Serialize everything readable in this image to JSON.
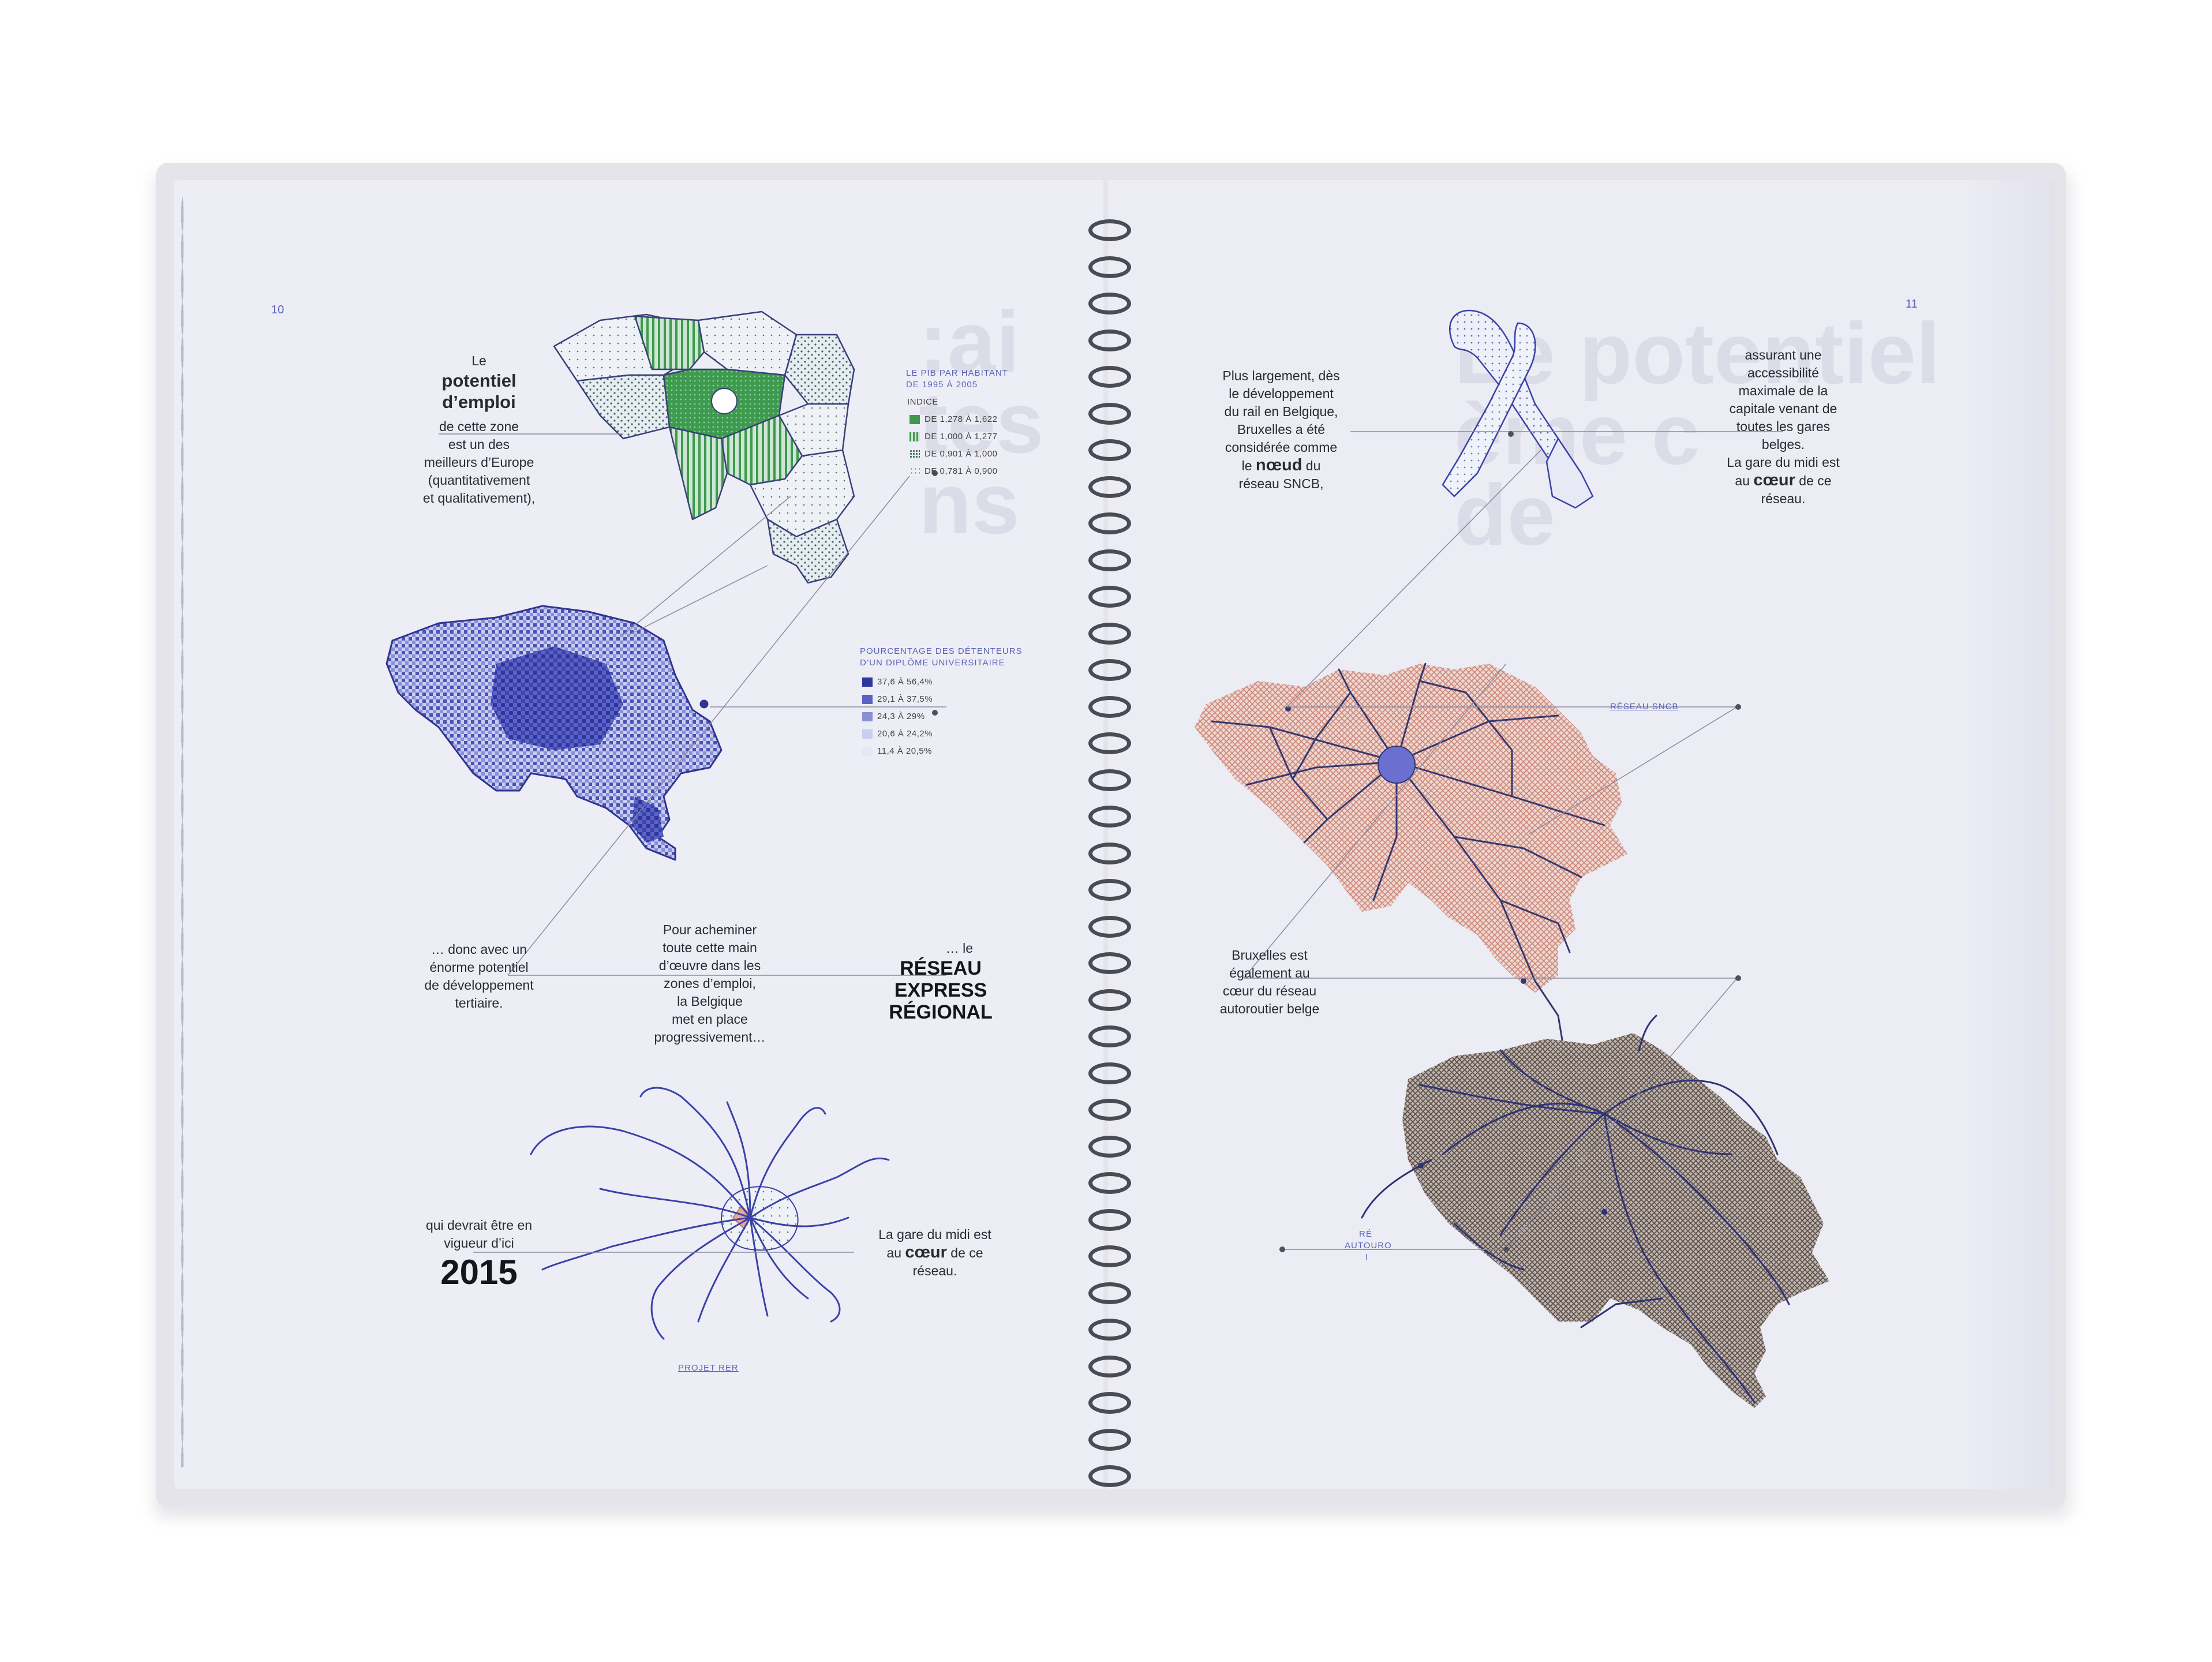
{
  "pages": {
    "left_number": "10",
    "right_number": "11"
  },
  "left": {
    "intro": {
      "line1": "Le",
      "line2": "potentiel",
      "line3": "d’emploi",
      "line4": "de cette zone",
      "line5": "est un des",
      "line6": "meilleurs d’Europe",
      "line7": "(quantitativement",
      "line8": "et qualitativement),"
    },
    "legend_pib": {
      "title1": "LE PIB PAR HABITANT",
      "title2": "DE 1995 À 2005",
      "sub": "INDICE",
      "items": [
        "DE 1,278 À 1,622",
        "DE 1,000 À 1,277",
        "DE 0,901 À 1,000",
        "DE 0,781 À 0,900"
      ]
    },
    "legend_diploma": {
      "title1": "POURCENTAGE DES DÉTENTEURS",
      "title2": "D’UN DIPLÔME UNIVERSITAIRE",
      "items": [
        "37,6 À 56,4%",
        "29,1 À 37,5%",
        "24,3 À 29%",
        "20,6 À 24,2%",
        "11,4 À 20,5%"
      ]
    },
    "donc": {
      "line1": "… donc avec un",
      "line2": "énorme potentiel",
      "line3": "de développement",
      "line4": "tertiaire."
    },
    "acheminer": {
      "line1": "Pour acheminer",
      "line2": "toute cette main",
      "line3": "d’œuvre dans les",
      "line4": "zones d’emploi,",
      "line5": "la Belgique",
      "line6": "met en place",
      "line7": "progressivement…"
    },
    "rer": {
      "line1": "… le",
      "line2": "RÉSEAU",
      "line3": "EXPRESS",
      "line4": "RÉGIONAL"
    },
    "vigueur": {
      "line1": "qui devrait être en",
      "line2": "vigueur d’ici",
      "year": "2015"
    },
    "midi": {
      "line1": "La gare du midi est",
      "line2_pre": "au",
      "line2_bold": "cœur",
      "line2_post": "de ce",
      "line3": "réseau."
    },
    "projet_label": "PROJET RER"
  },
  "right": {
    "largement": {
      "line1": "Plus largement, dès",
      "line2": "le développement",
      "line3": "du rail en Belgique,",
      "line4": "Bruxelles a été",
      "line5": "considérée comme",
      "line6_pre": "le",
      "line6_bold": "nœud",
      "line6_post": "du",
      "line7": "réseau SNCB,"
    },
    "accessibilite": {
      "line1": "assurant une",
      "line2": "accessibilité",
      "line3": "maximale de la",
      "line4": "capitale venant de",
      "line5": "toutes les gares",
      "line6": "belges.",
      "line7": "La gare du midi est",
      "line8_pre": "au",
      "line8_bold": "cœur",
      "line8_post": "de ce",
      "line9": "réseau."
    },
    "reseau_sncb": "RÉSEAU SNCB",
    "bruxelles": {
      "line1": "Bruxelles est",
      "line2": "également au",
      "line3": "cœur du réseau",
      "line4": "autoroutier belge"
    },
    "autoroute_label1": "RÉ",
    "autoroute_label2": "AUTOURO",
    "autoroute_label3": "I"
  },
  "colors": {
    "green": "#3d9a4e",
    "blue": "#3f47b2",
    "salmon": "#d9a79c",
    "brown": "#8b7d77",
    "accent_text": "#5b63b8"
  },
  "icons": {
    "ribbon": "ribbon-icon"
  }
}
